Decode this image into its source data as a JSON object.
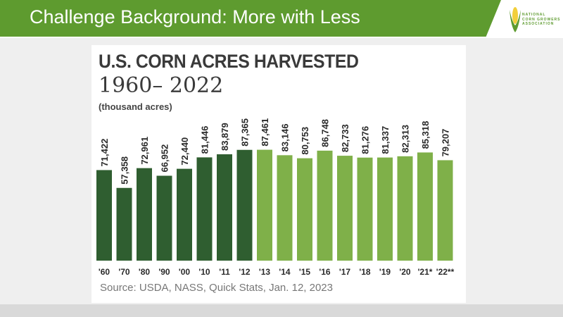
{
  "slide": {
    "title": "Challenge Background: More with Less",
    "logo_text": [
      "NATIONAL",
      "CORN GROWERS",
      "ASSOCIATION"
    ]
  },
  "chart_data": {
    "type": "bar",
    "title": "U.S. CORN ACRES HARVESTED",
    "subtitle": "1960– 2022",
    "unit_label": "(thousand acres)",
    "source": "Source: USDA, NASS, Quick Stats, Jan. 12, 2023",
    "categories": [
      "'60",
      "'70",
      "'80",
      "'90",
      "'00",
      "'10",
      "'11",
      "'12",
      "'13",
      "'14",
      "'15",
      "'16",
      "'17",
      "'18",
      "'19",
      "'20",
      "'21*",
      "'22**"
    ],
    "values": [
      71422,
      57358,
      72961,
      66952,
      72440,
      81446,
      83879,
      87365,
      87461,
      83146,
      80753,
      86748,
      82733,
      81276,
      81337,
      82313,
      85318,
      79207
    ],
    "data_labels": [
      "71,422",
      "57,358",
      "72,961",
      "66,952",
      "72,440",
      "81,446",
      "83,879",
      "87,365",
      "87,461",
      "83,146",
      "80,753",
      "86,748",
      "82,733",
      "81,276",
      "81,337",
      "82,313",
      "85,318",
      "79,207"
    ],
    "ylim": [
      0,
      90000
    ],
    "grid": false,
    "colors": {
      "dark": "#2f5e30",
      "light": "#7fb049"
    },
    "dark_count": 8
  }
}
